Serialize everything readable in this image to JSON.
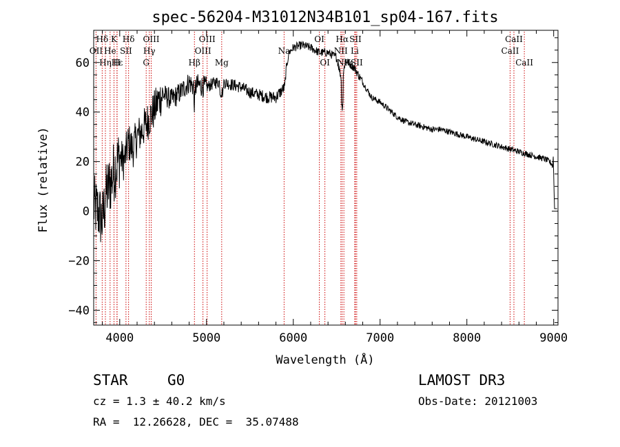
{
  "chart_data": {
    "type": "line",
    "title": "spec-56204-M31012N34B101_sp04-167.fits",
    "xlabel": "Wavelength (Å)",
    "ylabel": "Flux (relative)",
    "xlim": [
      3700,
      9050
    ],
    "ylim": [
      -46,
      73
    ],
    "xticks": [
      4000,
      5000,
      6000,
      7000,
      8000,
      9000
    ],
    "yticks": [
      -40,
      -20,
      0,
      20,
      40,
      60
    ],
    "series": [
      {
        "name": "spectrum",
        "x": [
          3700,
          3750,
          3800,
          3850,
          3900,
          3950,
          4000,
          4050,
          4100,
          4150,
          4200,
          4250,
          4300,
          4350,
          4400,
          4450,
          4500,
          4600,
          4700,
          4800,
          4860,
          4900,
          5000,
          5100,
          5200,
          5300,
          5400,
          5500,
          5600,
          5700,
          5800,
          5900,
          5920,
          5950,
          6000,
          6100,
          6200,
          6300,
          6400,
          6500,
          6563,
          6600,
          6700,
          6800,
          6900,
          7000,
          7100,
          7200,
          7300,
          7400,
          7500,
          7600,
          7700,
          7800,
          7900,
          8000,
          8100,
          8200,
          8300,
          8400,
          8500,
          8600,
          8700,
          8800,
          8900,
          8950,
          8980,
          9000,
          9010
        ],
        "y": [
          2,
          0,
          -4,
          8,
          12,
          18,
          22,
          20,
          28,
          25,
          30,
          32,
          35,
          38,
          41,
          45,
          47,
          45,
          48,
          52,
          50,
          51,
          50,
          52,
          52,
          51,
          50,
          48,
          47,
          46,
          46,
          50,
          58,
          64,
          66,
          67,
          66,
          64,
          64,
          62,
          52,
          61,
          58,
          52,
          46,
          44,
          41,
          38,
          36,
          35,
          34,
          33,
          33,
          32,
          31,
          30,
          29,
          28,
          27,
          26,
          25,
          24,
          23,
          22,
          21,
          20,
          19,
          15,
          1
        ]
      }
    ],
    "line_markers": [
      {
        "label": "Hδ",
        "wavelength": 3798,
        "row": 1
      },
      {
        "label": "OII",
        "wavelength": 3727,
        "row": 2
      },
      {
        "label": "K",
        "wavelength": 3934,
        "row": 1
      },
      {
        "label": "He",
        "wavelength": 3889,
        "row": 2
      },
      {
        "label": "Hε",
        "wavelength": 3970,
        "row": 3
      },
      {
        "label": "H",
        "wavelength": 3968,
        "row": 3
      },
      {
        "label": "Hη",
        "wavelength": 3835,
        "row": 3
      },
      {
        "label": "SII",
        "wavelength": 4072,
        "row": 2
      },
      {
        "label": "Hδ",
        "wavelength": 4102,
        "row": 1
      },
      {
        "label": "OIII",
        "wavelength": 4363,
        "row": 1
      },
      {
        "label": "Hγ",
        "wavelength": 4341,
        "row": 2
      },
      {
        "label": "G",
        "wavelength": 4305,
        "row": 3
      },
      {
        "label": "OIII",
        "wavelength": 5007,
        "row": 1
      },
      {
        "label": "OIII",
        "wavelength": 4959,
        "row": 2
      },
      {
        "label": "Hβ",
        "wavelength": 4861,
        "row": 3
      },
      {
        "label": "Mg",
        "wavelength": 5175,
        "row": 3
      },
      {
        "label": "Na",
        "wavelength": 5894,
        "row": 2
      },
      {
        "label": "OI",
        "wavelength": 6300,
        "row": 1
      },
      {
        "label": "OI",
        "wavelength": 6364,
        "row": 3
      },
      {
        "label": "Hα",
        "wavelength": 6563,
        "row": 1
      },
      {
        "label": "SII",
        "wavelength": 6716,
        "row": 1
      },
      {
        "label": "NII",
        "wavelength": 6548,
        "row": 2
      },
      {
        "label": "Li",
        "wavelength": 6708,
        "row": 2
      },
      {
        "label": "NII",
        "wavelength": 6583,
        "row": 3
      },
      {
        "label": "SII",
        "wavelength": 6731,
        "row": 3
      },
      {
        "label": "CaII",
        "wavelength": 8542,
        "row": 1
      },
      {
        "label": "CaII",
        "wavelength": 8498,
        "row": 2
      },
      {
        "label": "CaII",
        "wavelength": 8662,
        "row": 3
      }
    ]
  },
  "info": {
    "object_class": "STAR",
    "subclass": "G0",
    "survey": "LAMOST DR3",
    "cz": "cz = 1.3 ± 40.2 km/s",
    "obs_date": "Obs-Date: 20121003",
    "coords": "RA =  12.26628, DEC =  35.07488"
  },
  "colors": {
    "spectrum": "#000000",
    "line_marker": "#cc0000",
    "axes": "#000000",
    "background": "#ffffff"
  }
}
